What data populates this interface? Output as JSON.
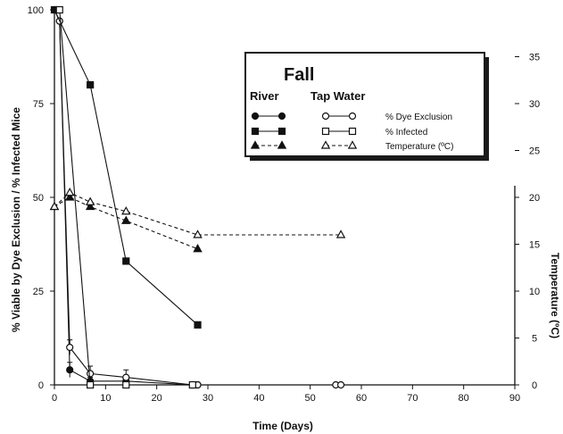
{
  "chart_data": {
    "type": "line",
    "title": "",
    "xlabel": "Time (Days)",
    "ylabel": "% Viable by Dye Exclusion / % Infected Mice",
    "y2label": "Temperature (ºC)",
    "xlim": [
      0,
      90
    ],
    "ylim": [
      0,
      100
    ],
    "y2lim": [
      0,
      40
    ],
    "xticks": [
      0,
      10,
      20,
      30,
      40,
      50,
      60,
      70,
      80,
      90
    ],
    "yticks": [
      0,
      25,
      50,
      75,
      100
    ],
    "y2ticks": [
      0,
      5,
      10,
      15,
      20,
      25,
      30,
      35
    ],
    "grid": false,
    "legend": {
      "title": "Fall",
      "placement": "top-right",
      "col_river": "River",
      "col_tap": "Tap Water",
      "rows": [
        {
          "label": "% Dye Exclusion"
        },
        {
          "label": "% Infected"
        },
        {
          "label": "Temperature (ºC)"
        }
      ]
    },
    "series": [
      {
        "legend_row": 0,
        "water": "River",
        "marker": "circle",
        "filled": true,
        "dashed": false,
        "axis": "left",
        "x": [
          0,
          1,
          3,
          7,
          14,
          27,
          28
        ],
        "y": [
          100,
          97,
          4,
          1,
          1,
          0,
          0
        ],
        "err": [
          0,
          0,
          2,
          1,
          1,
          0,
          0
        ]
      },
      {
        "legend_row": 0,
        "water": "Tap Water",
        "marker": "circle",
        "filled": false,
        "dashed": false,
        "axis": "left",
        "x": [
          0,
          1,
          3,
          7,
          14,
          27,
          28,
          55,
          56
        ],
        "y": [
          100,
          97,
          10,
          3,
          2,
          0,
          0,
          0,
          0
        ],
        "err": [
          0,
          0,
          2,
          2,
          2,
          0,
          0,
          0,
          0
        ]
      },
      {
        "legend_row": 1,
        "water": "River",
        "marker": "square",
        "filled": true,
        "dashed": false,
        "axis": "left",
        "x": [
          0,
          7,
          14,
          28
        ],
        "y": [
          100,
          80,
          33,
          16
        ],
        "err": [
          0,
          0,
          0,
          0
        ]
      },
      {
        "legend_row": 1,
        "water": "Tap Water",
        "marker": "square",
        "filled": false,
        "dashed": false,
        "axis": "left",
        "x": [
          1,
          7,
          14,
          27
        ],
        "y": [
          100,
          0,
          0,
          0
        ],
        "err": [
          0,
          0,
          0,
          0
        ]
      },
      {
        "legend_row": 2,
        "water": "River",
        "marker": "triangle",
        "filled": true,
        "dashed": true,
        "axis": "right",
        "x": [
          0,
          3,
          7,
          14,
          28
        ],
        "y": [
          19,
          20,
          19,
          17.5,
          14.5
        ],
        "err": [
          0,
          0,
          0,
          0,
          0
        ]
      },
      {
        "legend_row": 2,
        "water": "Tap Water",
        "marker": "triangle",
        "filled": false,
        "dashed": true,
        "axis": "right",
        "x": [
          0,
          3,
          7,
          14,
          28,
          56
        ],
        "y": [
          19,
          20.5,
          19.5,
          18.5,
          16,
          16
        ],
        "err": [
          0,
          0,
          0,
          0,
          0,
          0
        ]
      }
    ]
  }
}
